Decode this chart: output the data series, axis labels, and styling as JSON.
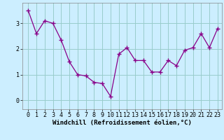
{
  "x": [
    0,
    1,
    2,
    3,
    4,
    5,
    6,
    7,
    8,
    9,
    10,
    11,
    12,
    13,
    14,
    15,
    16,
    17,
    18,
    19,
    20,
    21,
    22,
    23
  ],
  "y": [
    3.5,
    2.6,
    3.1,
    3.0,
    2.35,
    1.5,
    1.0,
    0.95,
    0.7,
    0.65,
    0.15,
    1.8,
    2.05,
    1.55,
    1.55,
    1.1,
    1.1,
    1.55,
    1.35,
    1.95,
    2.05,
    2.6,
    2.05,
    2.8
  ],
  "line_color": "#880088",
  "marker": "+",
  "marker_size": 4,
  "marker_lw": 1.0,
  "bg_color": "#cceeff",
  "grid_color": "#99cccc",
  "xlabel": "Windchill (Refroidissement éolien,°C)",
  "xlabel_fontsize": 6.5,
  "tick_fontsize": 6.0,
  "ylim": [
    -0.35,
    3.8
  ],
  "yticks": [
    0,
    1,
    2,
    3
  ],
  "xticks": [
    0,
    1,
    2,
    3,
    4,
    5,
    6,
    7,
    8,
    9,
    10,
    11,
    12,
    13,
    14,
    15,
    16,
    17,
    18,
    19,
    20,
    21,
    22,
    23
  ]
}
